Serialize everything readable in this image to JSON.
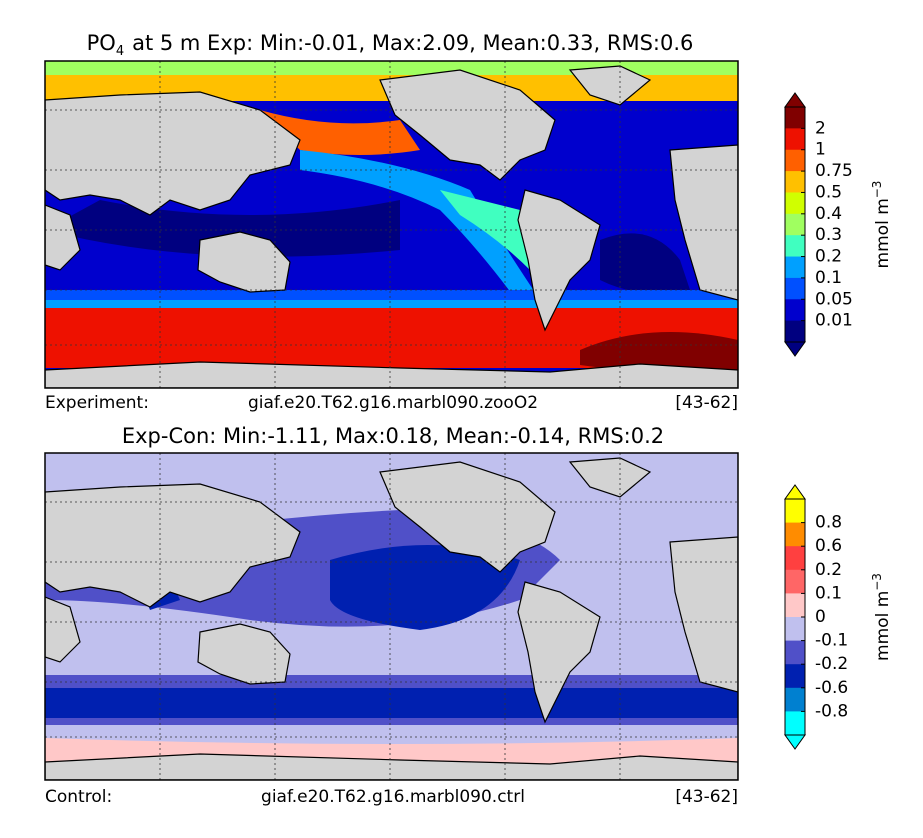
{
  "panels": [
    {
      "title_prefix": "PO",
      "title_subscript": "4",
      "title": "at 5 m Exp: Min:-0.01, Max:2.09, Mean:0.33, RMS:0.6",
      "footer": {
        "left": "Experiment:",
        "center": "giaf.e20.T62.g16.marbl090.zooO2",
        "right": "[43-62]"
      },
      "colorbar": {
        "label": "mmol m",
        "label_superscript": "−3",
        "ticks": [
          "2",
          "1",
          "0.75",
          "0.5",
          "0.4",
          "0.3",
          "0.2",
          "0.1",
          "0.05",
          "0.01"
        ],
        "colors": [
          "#800000",
          "#ee1100",
          "#ff6000",
          "#ffc000",
          "#d0ff00",
          "#a0ff60",
          "#40ffc0",
          "#00a0ff",
          "#0050ff",
          "#0000cd",
          "#000080"
        ]
      }
    },
    {
      "title": "Exp-Con: Min:-1.11, Max:0.18, Mean:-0.14, RMS:0.2",
      "footer": {
        "left": "Control:",
        "center": "giaf.e20.T62.g16.marbl090.ctrl",
        "right": "[43-62]"
      },
      "colorbar": {
        "label": "mmol m",
        "label_superscript": "−3",
        "ticks": [
          "0.8",
          "0.6",
          "0.2",
          "0.1",
          "0",
          "-0.1",
          "-0.2",
          "-0.6",
          "-0.8"
        ],
        "colors": [
          "#ffff00",
          "#ff8c00",
          "#ff4040",
          "#ff6666",
          "#ffc8c8",
          "#c0c0ee",
          "#5050c8",
          "#0020b0",
          "#0080d0",
          "#00ffff"
        ]
      }
    }
  ]
}
